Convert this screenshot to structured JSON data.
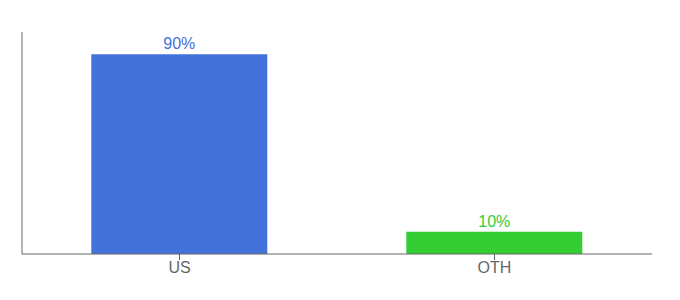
{
  "chart_data": {
    "type": "bar",
    "categories": [
      "US",
      "OTH"
    ],
    "values": [
      90,
      10
    ],
    "value_labels": [
      "90%",
      "10%"
    ],
    "colors": [
      "#4472db",
      "#33cc33"
    ],
    "ylim": [
      0,
      100
    ],
    "data_labels": true,
    "tick_labels": "x",
    "grid": false
  }
}
